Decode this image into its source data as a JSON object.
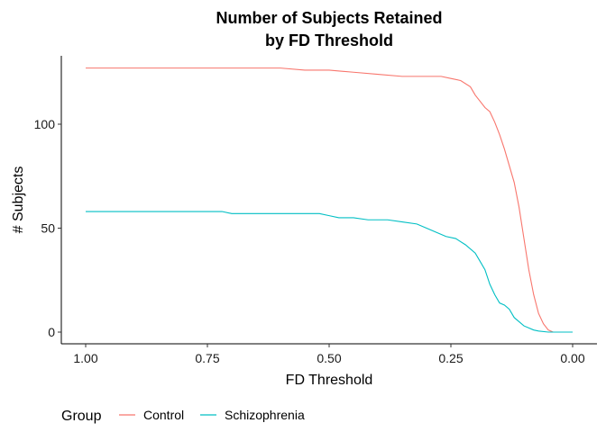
{
  "chart_data": {
    "type": "line",
    "title": [
      "Number of Subjects Retained",
      "by FD Threshold"
    ],
    "xlabel": "FD Threshold",
    "ylabel": "# Subjects",
    "xlim": [
      1.0,
      0.0
    ],
    "x_reversed": true,
    "ylim": [
      0,
      130
    ],
    "x_ticks": [
      1.0,
      0.75,
      0.5,
      0.25,
      0.0
    ],
    "x_tick_labels": [
      "1.00",
      "0.75",
      "0.50",
      "0.25",
      "0.00"
    ],
    "y_ticks": [
      0,
      50,
      100
    ],
    "y_tick_labels": [
      "0",
      "50",
      "100"
    ],
    "grid": false,
    "legend": {
      "title": "Group",
      "placement": "bottom"
    },
    "series": [
      {
        "name": "Control",
        "color": "#F8766D",
        "points": [
          [
            1.0,
            127
          ],
          [
            0.9,
            127
          ],
          [
            0.8,
            127
          ],
          [
            0.7,
            127
          ],
          [
            0.6,
            127
          ],
          [
            0.55,
            126
          ],
          [
            0.5,
            126
          ],
          [
            0.45,
            125
          ],
          [
            0.4,
            124
          ],
          [
            0.35,
            123
          ],
          [
            0.3,
            123
          ],
          [
            0.27,
            123
          ],
          [
            0.25,
            122
          ],
          [
            0.23,
            121
          ],
          [
            0.21,
            118
          ],
          [
            0.2,
            114
          ],
          [
            0.19,
            111
          ],
          [
            0.18,
            108
          ],
          [
            0.17,
            106
          ],
          [
            0.16,
            101
          ],
          [
            0.15,
            95
          ],
          [
            0.14,
            88
          ],
          [
            0.13,
            80
          ],
          [
            0.12,
            72
          ],
          [
            0.11,
            60
          ],
          [
            0.1,
            45
          ],
          [
            0.09,
            30
          ],
          [
            0.08,
            18
          ],
          [
            0.07,
            9
          ],
          [
            0.06,
            4
          ],
          [
            0.05,
            1
          ],
          [
            0.04,
            0
          ],
          [
            0.0,
            0
          ]
        ]
      },
      {
        "name": "Schizophrenia",
        "color": "#00BFC4",
        "points": [
          [
            1.0,
            58
          ],
          [
            0.9,
            58
          ],
          [
            0.8,
            58
          ],
          [
            0.72,
            58
          ],
          [
            0.7,
            57
          ],
          [
            0.6,
            57
          ],
          [
            0.52,
            57
          ],
          [
            0.5,
            56
          ],
          [
            0.48,
            55
          ],
          [
            0.45,
            55
          ],
          [
            0.42,
            54
          ],
          [
            0.38,
            54
          ],
          [
            0.35,
            53
          ],
          [
            0.32,
            52
          ],
          [
            0.3,
            50
          ],
          [
            0.28,
            48
          ],
          [
            0.26,
            46
          ],
          [
            0.24,
            45
          ],
          [
            0.22,
            42
          ],
          [
            0.2,
            38
          ],
          [
            0.19,
            34
          ],
          [
            0.18,
            30
          ],
          [
            0.17,
            23
          ],
          [
            0.16,
            18
          ],
          [
            0.15,
            14
          ],
          [
            0.14,
            13
          ],
          [
            0.13,
            11
          ],
          [
            0.12,
            7
          ],
          [
            0.11,
            5
          ],
          [
            0.1,
            3
          ],
          [
            0.09,
            2
          ],
          [
            0.08,
            1
          ],
          [
            0.07,
            0.5
          ],
          [
            0.05,
            0
          ],
          [
            0.0,
            0
          ]
        ]
      }
    ]
  }
}
